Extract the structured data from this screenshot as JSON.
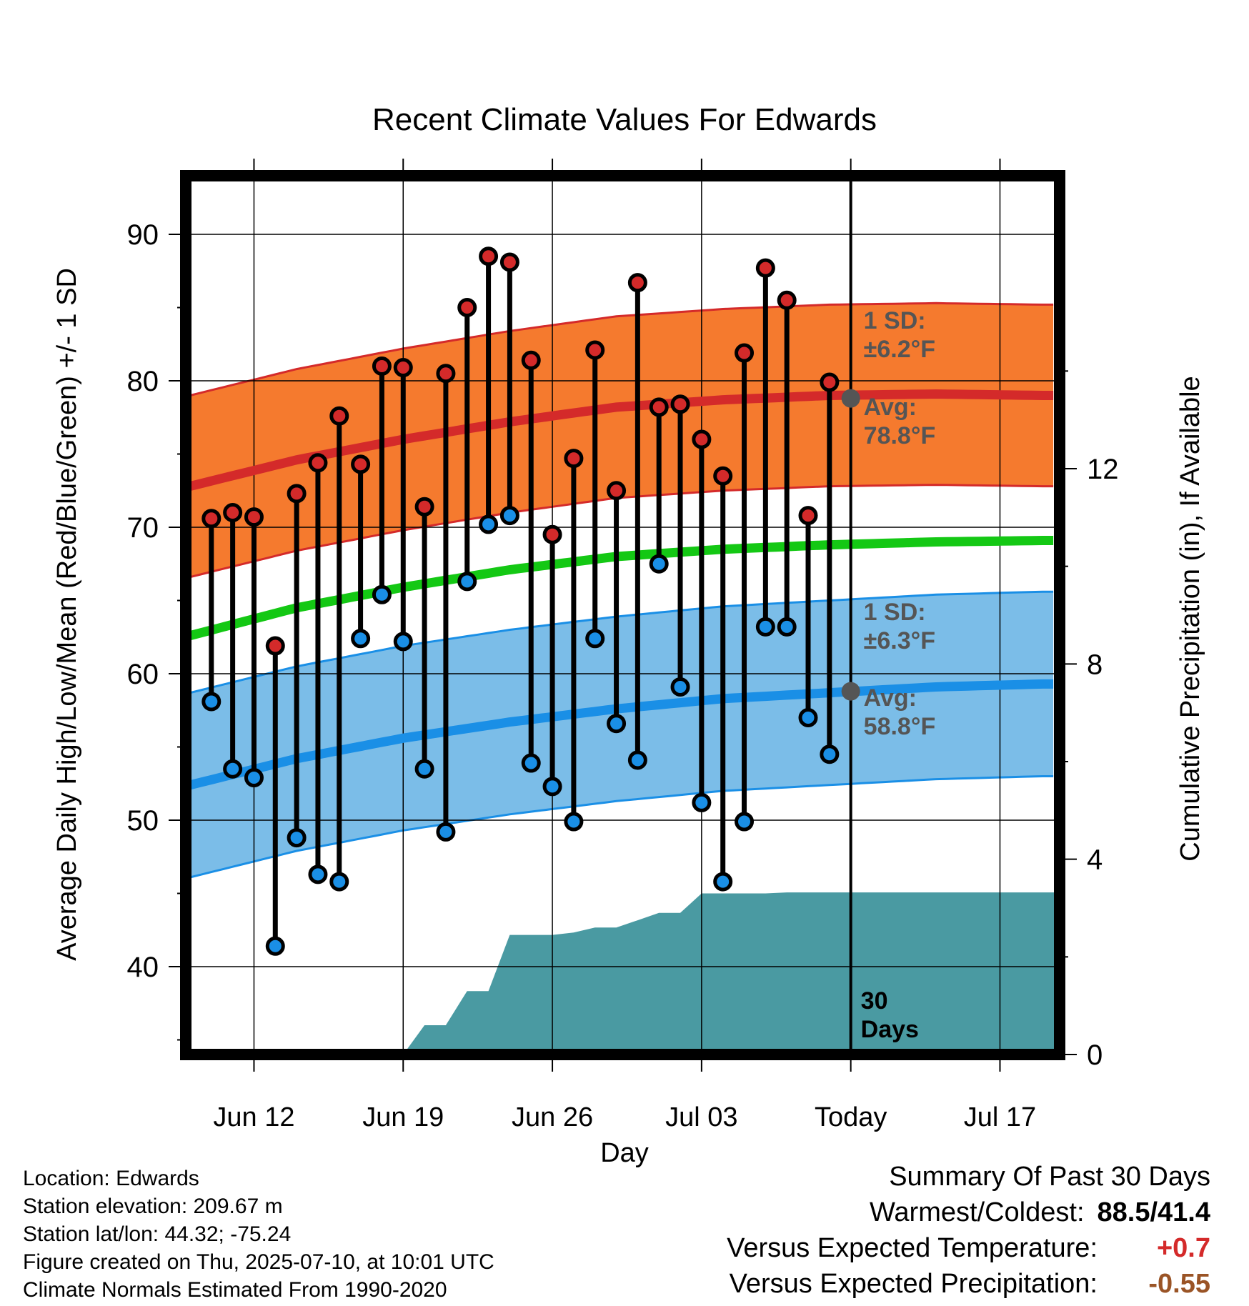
{
  "chart_data": {
    "type": "line",
    "title": "Recent Climate Values For Edwards",
    "xlabel": "Day",
    "ylabel": "Average Daily High/Low/Mean (Red/Blue/Green) +/- 1 SD",
    "y2label": "Cumulative Precipitation (in), If Available",
    "x_ticks": [
      {
        "day": 3,
        "label": "Jun 12"
      },
      {
        "day": 10,
        "label": "Jun 19"
      },
      {
        "day": 17,
        "label": "Jun 26"
      },
      {
        "day": 24,
        "label": "Jul 03"
      },
      {
        "day": 31,
        "label": "Today"
      },
      {
        "day": 38,
        "label": "Jul 17"
      }
    ],
    "xlim": [
      -0.2,
      40.8
    ],
    "ylim": [
      34,
      94
    ],
    "y_ticks": [
      40,
      50,
      60,
      70,
      80,
      90
    ],
    "y2lim": [
      0,
      18
    ],
    "y2_ticks": [
      0,
      4,
      8,
      12
    ],
    "today_day": 31,
    "period_label_line1": "30",
    "period_label_line2": "Days",
    "observed": {
      "days": [
        1,
        2,
        3,
        4,
        5,
        6,
        7,
        8,
        9,
        10,
        11,
        12,
        13,
        14,
        15,
        16,
        17,
        18,
        19,
        20,
        21,
        22,
        23,
        24,
        25,
        26,
        27,
        28,
        29,
        30
      ],
      "high": [
        70.6,
        71.0,
        70.7,
        61.9,
        72.3,
        74.4,
        77.6,
        74.3,
        81.0,
        80.9,
        71.4,
        80.5,
        85.0,
        88.5,
        88.1,
        81.4,
        69.5,
        74.7,
        82.1,
        72.5,
        86.7,
        78.2,
        78.4,
        76.0,
        73.5,
        81.9,
        87.7,
        85.5,
        70.8,
        79.9
      ],
      "low": [
        58.1,
        53.5,
        52.9,
        41.4,
        48.8,
        46.3,
        45.8,
        62.4,
        65.4,
        62.2,
        53.5,
        49.2,
        66.3,
        70.2,
        70.8,
        53.9,
        52.3,
        49.9,
        62.4,
        56.6,
        54.1,
        67.5,
        59.1,
        51.2,
        45.8,
        49.9,
        63.2,
        63.2,
        57.0,
        54.5
      ]
    },
    "normals": {
      "days": [
        0,
        5,
        10,
        15,
        20,
        25,
        30,
        35,
        40
      ],
      "avg_high": [
        72.8,
        74.6,
        76.0,
        77.2,
        78.2,
        78.7,
        79.0,
        79.1,
        79.0
      ],
      "avg_low": [
        52.4,
        54.2,
        55.6,
        56.7,
        57.6,
        58.3,
        58.7,
        59.1,
        59.3
      ],
      "avg_mean": [
        62.6,
        64.5,
        65.9,
        67.1,
        68.0,
        68.5,
        68.8,
        69.0,
        69.1
      ],
      "high_sd": 6.2,
      "low_sd": 6.3
    },
    "annotations": {
      "high_sd_label1": "1 SD:",
      "high_sd_label2": "±6.2°F",
      "high_avg_label1": "Avg:",
      "high_avg_label2": "78.8°F",
      "high_avg_value": 78.8,
      "low_sd_label1": "1 SD:",
      "low_sd_label2": "±6.3°F",
      "low_avg_label1": "Avg:",
      "low_avg_label2": "58.8°F",
      "low_avg_value": 58.8
    },
    "precipitation": {
      "days": [
        10,
        11,
        12,
        13,
        14,
        15,
        16,
        17,
        18,
        19,
        20,
        21,
        22,
        23,
        24,
        25,
        26,
        27,
        28,
        29,
        30,
        31,
        40.8
      ],
      "cumulative": [
        0,
        0.6,
        0.6,
        1.3,
        1.3,
        2.45,
        2.45,
        2.45,
        2.5,
        2.6,
        2.6,
        2.75,
        2.9,
        2.9,
        3.3,
        3.3,
        3.3,
        3.3,
        3.32,
        3.32,
        3.32,
        3.32,
        3.32
      ]
    }
  },
  "colors": {
    "high_marker": "#d42a2a",
    "low_marker": "#1a8fe6",
    "high_band": "#f57a2e",
    "high_line": "#d42a2a",
    "low_band": "#7bbde8",
    "low_line": "#1a8fe6",
    "mean_line": "#14c814",
    "precip_fill": "#4a9aa2",
    "annotation_text": "#555555"
  },
  "info": {
    "location": "Location: Edwards",
    "elevation": "Station elevation: 209.67 m",
    "latlon": "Station lat/lon: 44.32; -75.24",
    "created": "Figure created on Thu, 2025-07-10, at 10:01 UTC",
    "normals": "Climate Normals Estimated From 1990-2020"
  },
  "summary": {
    "title": "Summary Of Past 30 Days",
    "warm_cold_label": "Warmest/Coldest:",
    "warm_cold_value": "88.5/41.4",
    "temp_label": "Versus Expected Temperature:",
    "temp_value": "+0.7",
    "precip_label": "Versus Expected Precipitation:",
    "precip_value": "-0.55"
  }
}
